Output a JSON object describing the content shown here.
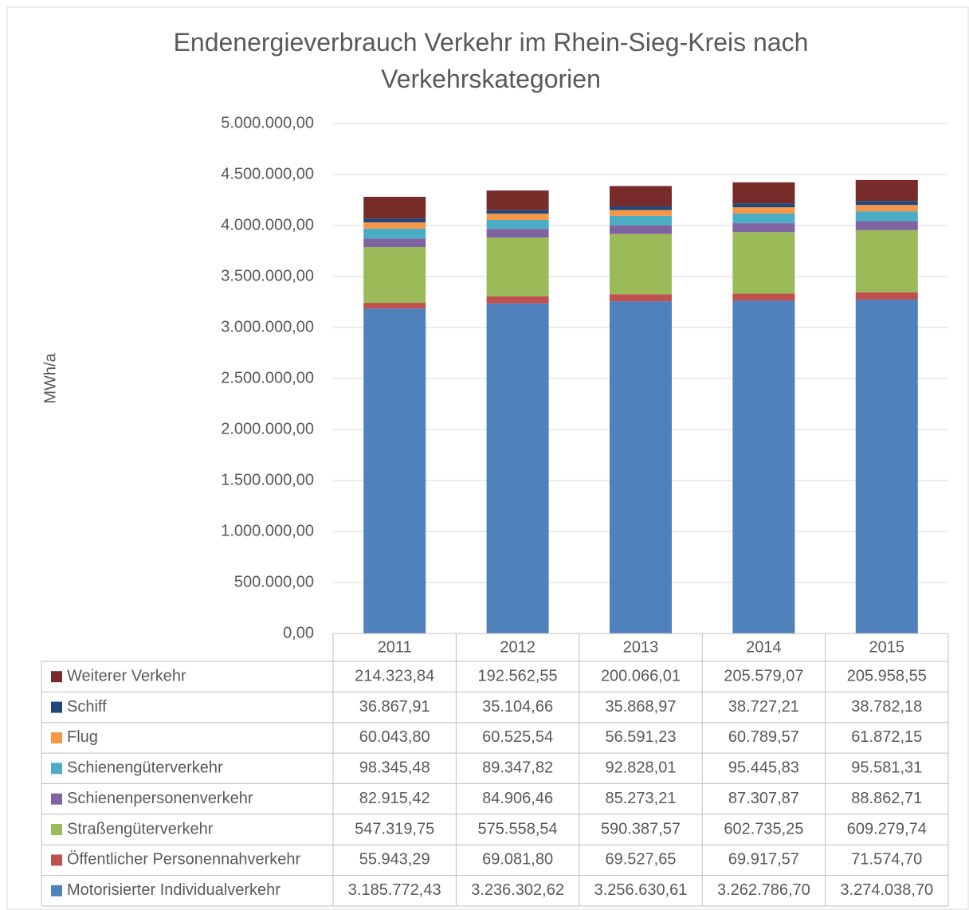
{
  "chart_data": {
    "type": "stacked_bar",
    "title": "Endenergieverbrauch Verkehr im Rhein-Sieg-Kreis nach Verkehrskategorien",
    "y_label": "MWh/a",
    "categories": [
      "2011",
      "2012",
      "2013",
      "2014",
      "2015"
    ],
    "ylim": [
      0,
      5000000
    ],
    "yticks": [
      {
        "value": 0,
        "label": "0,00"
      },
      {
        "value": 500000,
        "label": "500.000,00"
      },
      {
        "value": 1000000,
        "label": "1.000.000,00"
      },
      {
        "value": 1500000,
        "label": "1.500.000,00"
      },
      {
        "value": 2000000,
        "label": "2.000.000,00"
      },
      {
        "value": 2500000,
        "label": "2.500.000,00"
      },
      {
        "value": 3000000,
        "label": "3.000.000,00"
      },
      {
        "value": 3500000,
        "label": "3.500.000,00"
      },
      {
        "value": 4000000,
        "label": "4.000.000,00"
      },
      {
        "value": 4500000,
        "label": "4.500.000,00"
      },
      {
        "value": 5000000,
        "label": "5.000.000,00"
      }
    ],
    "grid": true,
    "series": [
      {
        "name": "Motorisierter Individualverkehr",
        "color": "#4f81bd",
        "values": [
          3185772.43,
          3236302.62,
          3256630.61,
          3262786.7,
          3274038.7
        ],
        "value_labels": [
          "3.185.772,43",
          "3.236.302,62",
          "3.256.630,61",
          "3.262.786,70",
          "3.274.038,70"
        ]
      },
      {
        "name": "Öffentlicher Personennahverkehr",
        "color": "#c0504d",
        "values": [
          55943.29,
          69081.8,
          69527.65,
          69917.57,
          71574.7
        ],
        "value_labels": [
          "55.943,29",
          "69.081,80",
          "69.527,65",
          "69.917,57",
          "71.574,70"
        ]
      },
      {
        "name": "Straßengüterverkehr",
        "color": "#9bbb59",
        "values": [
          547319.75,
          575558.54,
          590387.57,
          602735.25,
          609279.74
        ],
        "value_labels": [
          "547.319,75",
          "575.558,54",
          "590.387,57",
          "602.735,25",
          "609.279,74"
        ]
      },
      {
        "name": "Schienenpersonenverkehr",
        "color": "#8064a2",
        "values": [
          82915.42,
          84906.46,
          85273.21,
          87307.87,
          88862.71
        ],
        "value_labels": [
          "82.915,42",
          "84.906,46",
          "85.273,21",
          "87.307,87",
          "88.862,71"
        ]
      },
      {
        "name": "Schienengüterverkehr",
        "color": "#4bacc6",
        "values": [
          98345.48,
          89347.82,
          92828.01,
          95445.83,
          95581.31
        ],
        "value_labels": [
          "98.345,48",
          "89.347,82",
          "92.828,01",
          "95.445,83",
          "95.581,31"
        ]
      },
      {
        "name": "Flug",
        "color": "#f79646",
        "values": [
          60043.8,
          60525.54,
          56591.23,
          60789.57,
          61872.15
        ],
        "value_labels": [
          "60.043,80",
          "60.525,54",
          "56.591,23",
          "60.789,57",
          "61.872,15"
        ]
      },
      {
        "name": "Schiff",
        "color": "#1f497d",
        "values": [
          36867.91,
          35104.66,
          35868.97,
          38727.21,
          38782.18
        ],
        "value_labels": [
          "36.867,91",
          "35.104,66",
          "35.868,97",
          "38.727,21",
          "38.782,18"
        ]
      },
      {
        "name": "Weiterer Verkehr",
        "color": "#772c2a",
        "values": [
          214323.84,
          192562.55,
          200066.01,
          205579.07,
          205958.55
        ],
        "value_labels": [
          "214.323,84",
          "192.562,55",
          "200.066,01",
          "205.579,07",
          "205.958,55"
        ]
      }
    ]
  }
}
